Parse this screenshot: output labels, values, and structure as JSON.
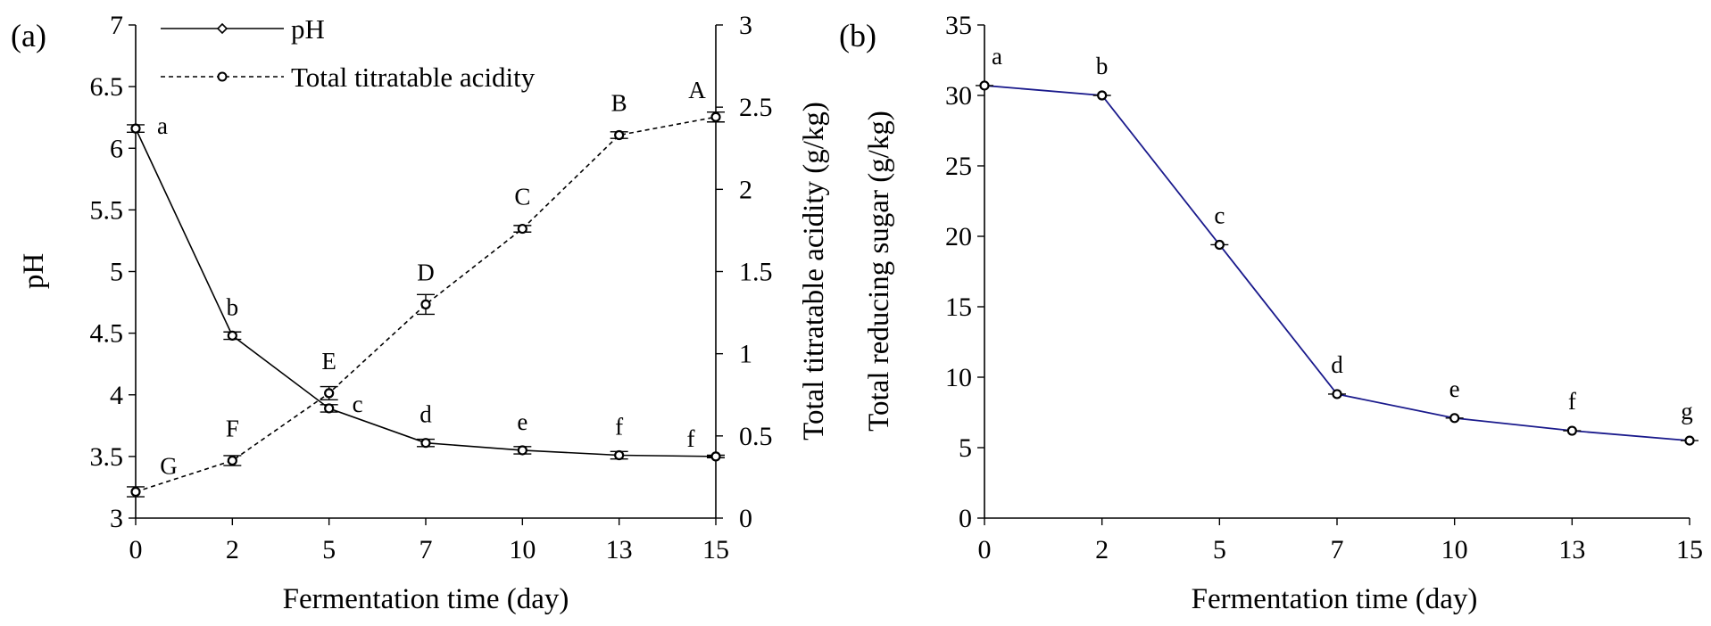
{
  "chart_data": [
    {
      "type": "line",
      "panel_label": "(a)",
      "x": [
        0,
        2,
        5,
        7,
        10,
        13,
        15
      ],
      "xlabel": "Fermentation time (day)",
      "ylabel": "pH",
      "y2label": "Total titratable acidity (g/kg)",
      "ylim": [
        3,
        7
      ],
      "y2lim": [
        0,
        3
      ],
      "yticks": [
        "3",
        "3.5",
        "4",
        "4.5",
        "5",
        "5.5",
        "6",
        "6.5",
        "7"
      ],
      "y2ticks": [
        "0",
        "0.5",
        "1",
        "1.5",
        "2",
        "2.5",
        "3"
      ],
      "legend_position": "top-left",
      "series": [
        {
          "name": "pH",
          "axis": "left",
          "style": "solid",
          "values": [
            6.16,
            4.48,
            3.89,
            3.61,
            3.55,
            3.51,
            3.5
          ],
          "errors": [
            0.03,
            0.03,
            0.03,
            0.03,
            0.03,
            0.03,
            0.01
          ],
          "letters": [
            "a",
            "b",
            "c",
            "d",
            "e",
            "f",
            "f"
          ]
        },
        {
          "name": "Total titratable acidity",
          "axis": "right",
          "style": "dashed",
          "values": [
            0.16,
            0.35,
            0.76,
            1.3,
            1.76,
            2.33,
            2.44
          ],
          "errors": [
            0.03,
            0.03,
            0.04,
            0.06,
            0.02,
            0.02,
            0.03
          ],
          "letters": [
            "G",
            "F",
            "E",
            "D",
            "C",
            "B",
            "A"
          ]
        }
      ]
    },
    {
      "type": "line",
      "panel_label": "(b)",
      "x": [
        0,
        2,
        5,
        7,
        10,
        13,
        15
      ],
      "xlabel": "Fermentation time (day)",
      "ylabel": "Total reducing sugar (g/kg)",
      "ylim": [
        0,
        35
      ],
      "yticks": [
        "0",
        "5",
        "10",
        "15",
        "20",
        "25",
        "30",
        "35"
      ],
      "series": [
        {
          "color": "#1a1a8c",
          "values": [
            30.7,
            30.0,
            19.4,
            8.8,
            7.1,
            6.2,
            5.5
          ],
          "errors": [
            0.2,
            0.2,
            0.3,
            0.3,
            0.2,
            0.2,
            0.1
          ],
          "letters": [
            "a",
            "b",
            "c",
            "d",
            "e",
            "f",
            "g"
          ]
        }
      ]
    }
  ]
}
